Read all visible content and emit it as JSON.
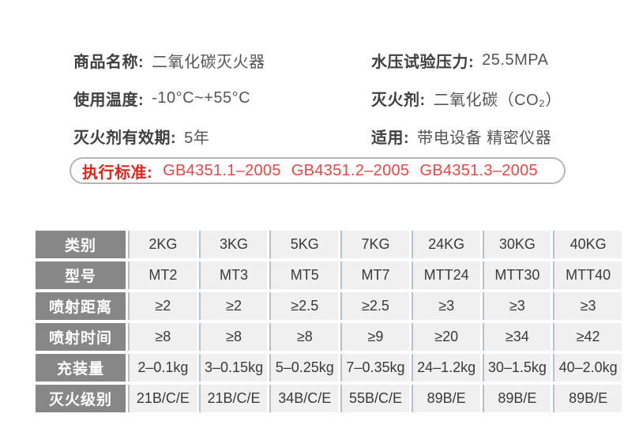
{
  "specs": {
    "left": [
      {
        "label": "商品名称:",
        "value": "二氧化碳灭火器"
      },
      {
        "label": "使用温度:",
        "value": "-10°C~+55°C"
      },
      {
        "label": "灭火剂有效期:",
        "value": "5年"
      }
    ],
    "right": [
      {
        "label": "水压试验压力:",
        "value": "25.5MPA"
      },
      {
        "label": "灭火剂:",
        "value": "二氧化碳（CO₂）"
      },
      {
        "label": "适用:",
        "value": "带电设备 精密仪器"
      }
    ]
  },
  "standards": {
    "label": "执行标准:",
    "values": [
      "GB4351.1–2005",
      "GB4351.2–2005",
      "GB4351.3–2005"
    ]
  },
  "table": {
    "rows": [
      {
        "header": "类别",
        "cells": [
          "2KG",
          "3KG",
          "5KG",
          "7KG",
          "24KG",
          "30KG",
          "40KG"
        ]
      },
      {
        "header": "型号",
        "cells": [
          "MT2",
          "MT3",
          "MT5",
          "MT7",
          "MTT24",
          "MTT30",
          "MTT40"
        ]
      },
      {
        "header": "喷射距离",
        "cells": [
          "≥2",
          "≥2",
          "≥2.5",
          "≥2.5",
          "≥3",
          "≥3",
          "≥3"
        ]
      },
      {
        "header": "喷射时间",
        "cells": [
          "≥8",
          "≥8",
          "≥8",
          "≥9",
          "≥20",
          "≥34",
          "≥42"
        ]
      },
      {
        "header": "充装量",
        "cells": [
          "2–0.1kg",
          "3–0.15kg",
          "5–0.25kg",
          "7–0.35kg",
          "24–1.2kg",
          "30–1.5kg",
          "40–2.0kg"
        ]
      },
      {
        "header": "灭火级别",
        "cells": [
          "21B/C/E",
          "21B/C/E",
          "34B/C/E",
          "55B/C/E",
          "89B/E",
          "89B/E",
          "89B/E"
        ]
      }
    ]
  },
  "colors": {
    "accent_red": "#e2231a",
    "standard_value_red": "#ef4444",
    "pill_border_gray": "#b5b5b5",
    "table_header_bg": "#878787",
    "table_header_text": "#ffffff",
    "table_cell_bg": "#f0f0f0",
    "table_cell_text": "#3a3a3a",
    "cell_divider": "#b2c1cb"
  }
}
